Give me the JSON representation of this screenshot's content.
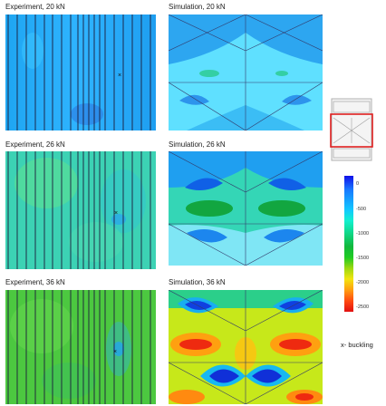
{
  "rows": [
    {
      "experiment_title": "Experiment, 20 kN",
      "simulation_title": "Simulation, 20 kN"
    },
    {
      "experiment_title": "Experiment, 26 kN",
      "simulation_title": "Simulation, 26 kN"
    },
    {
      "experiment_title": "Experiment, 36 kN",
      "simulation_title": "Simulation, 36 kN"
    }
  ],
  "legend": {
    "ticks": [
      "0",
      "-500",
      "-1000",
      "-1500",
      "-2000",
      "-2500"
    ],
    "caption": "x- buckling"
  },
  "colors": {
    "frame_highlight": "#e02020",
    "legend_top": "#1010e8",
    "legend_bottom": "#e11010"
  }
}
